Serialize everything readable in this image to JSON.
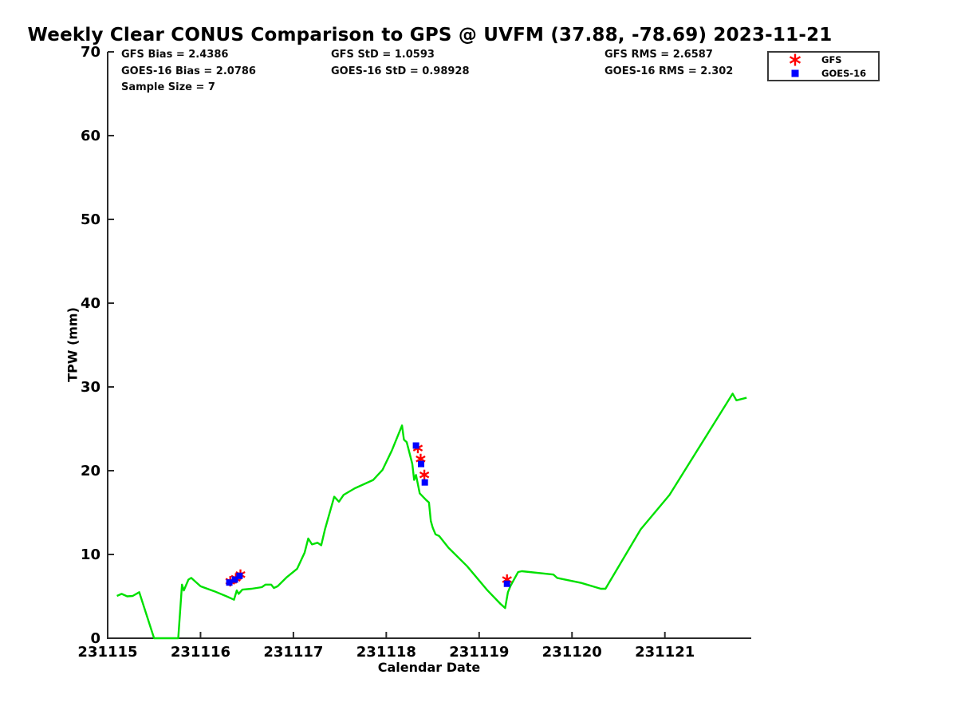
{
  "stats": {
    "gfs_bias": "GFS Bias = 2.4386",
    "goes_bias": "GOES-16 Bias = 2.0786",
    "sample_size": "Sample Size = 7",
    "gfs_std": "GFS StD = 1.0593",
    "goes_std": "GOES-16 StD = 0.98928",
    "gfs_rms": "GFS RMS = 2.6587",
    "goes_rms": "GOES-16 RMS = 2.302"
  },
  "chart_data": {
    "type": "line",
    "title": "Weekly Clear CONUS Comparison to GPS @ UVFM (37.88, -78.69) 2023-11-21",
    "xlabel": "Calendar Date",
    "ylabel": "TPW (mm)",
    "xlim": [
      231115,
      231121.93
    ],
    "ylim": [
      0,
      70
    ],
    "xticks": [
      231115,
      231116,
      231117,
      231118,
      231119,
      231120,
      231121
    ],
    "yticks": [
      0,
      10,
      20,
      30,
      40,
      50,
      60,
      70
    ],
    "grid": false,
    "legend_position": "top-right",
    "axis_color": "#2b2b2b",
    "background": "#ffffff",
    "series": [
      {
        "name": "GPS",
        "type": "line",
        "marker": "none",
        "color": "#00e000",
        "in_legend": false,
        "points": [
          [
            231115.1,
            5.05
          ],
          [
            231115.15,
            5.3
          ],
          [
            231115.21,
            5.0
          ],
          [
            231115.27,
            5.05
          ],
          [
            231115.34,
            5.5
          ],
          [
            231115.5,
            0
          ],
          [
            231115.76,
            0
          ],
          [
            231115.8,
            6.4
          ],
          [
            231115.82,
            5.7
          ],
          [
            231115.87,
            7.0
          ],
          [
            231115.9,
            7.2
          ],
          [
            231116.0,
            6.2
          ],
          [
            231116.15,
            5.6
          ],
          [
            231116.28,
            5.0
          ],
          [
            231116.36,
            4.6
          ],
          [
            231116.39,
            5.7
          ],
          [
            231116.41,
            5.3
          ],
          [
            231116.45,
            5.8
          ],
          [
            231116.55,
            5.9
          ],
          [
            231116.66,
            6.1
          ],
          [
            231116.7,
            6.4
          ],
          [
            231116.76,
            6.4
          ],
          [
            231116.79,
            6.0
          ],
          [
            231116.83,
            6.2
          ],
          [
            231116.93,
            7.3
          ],
          [
            231117.04,
            8.3
          ],
          [
            231117.12,
            10.2
          ],
          [
            231117.16,
            11.9
          ],
          [
            231117.2,
            11.2
          ],
          [
            231117.26,
            11.4
          ],
          [
            231117.3,
            11.1
          ],
          [
            231117.34,
            13.0
          ],
          [
            231117.44,
            16.9
          ],
          [
            231117.49,
            16.3
          ],
          [
            231117.54,
            17.1
          ],
          [
            231117.66,
            17.9
          ],
          [
            231117.86,
            18.9
          ],
          [
            231117.96,
            20.1
          ],
          [
            231118.06,
            22.4
          ],
          [
            231118.17,
            25.4
          ],
          [
            231118.19,
            23.7
          ],
          [
            231118.22,
            23.4
          ],
          [
            231118.28,
            20.8
          ],
          [
            231118.3,
            18.9
          ],
          [
            231118.32,
            19.5
          ],
          [
            231118.36,
            17.3
          ],
          [
            231118.43,
            16.5
          ],
          [
            231118.46,
            16.2
          ],
          [
            231118.48,
            14.0
          ],
          [
            231118.5,
            13.2
          ],
          [
            231118.53,
            12.4
          ],
          [
            231118.57,
            12.2
          ],
          [
            231118.67,
            10.8
          ],
          [
            231118.87,
            8.6
          ],
          [
            231119.09,
            5.7
          ],
          [
            231119.23,
            4.1
          ],
          [
            231119.28,
            3.6
          ],
          [
            231119.31,
            5.5
          ],
          [
            231119.34,
            6.3
          ],
          [
            231119.42,
            7.9
          ],
          [
            231119.46,
            8.0
          ],
          [
            231119.8,
            7.6
          ],
          [
            231119.84,
            7.2
          ],
          [
            231120.1,
            6.6
          ],
          [
            231120.31,
            5.9
          ],
          [
            231120.36,
            5.9
          ],
          [
            231120.74,
            13.0
          ],
          [
            231121.05,
            17.1
          ],
          [
            231121.73,
            29.2
          ],
          [
            231121.77,
            28.4
          ],
          [
            231121.88,
            28.7
          ]
        ]
      },
      {
        "name": "GFS",
        "type": "scatter",
        "marker": "asterisk",
        "color": "#ff0000",
        "in_legend": true,
        "points": [
          [
            231116.32,
            6.8
          ],
          [
            231116.38,
            7.15
          ],
          [
            231116.43,
            7.6
          ],
          [
            231118.34,
            22.7
          ],
          [
            231118.37,
            21.4
          ],
          [
            231118.41,
            19.5
          ],
          [
            231119.3,
            7.0
          ]
        ]
      },
      {
        "name": "GOES-16",
        "type": "scatter",
        "marker": "square",
        "color": "#0000ff",
        "in_legend": true,
        "points": [
          [
            231116.31,
            6.65
          ],
          [
            231116.37,
            7.0
          ],
          [
            231116.42,
            7.45
          ],
          [
            231118.32,
            23.0
          ],
          [
            231118.375,
            20.8
          ],
          [
            231118.415,
            18.6
          ],
          [
            231119.3,
            6.5
          ]
        ]
      }
    ]
  }
}
